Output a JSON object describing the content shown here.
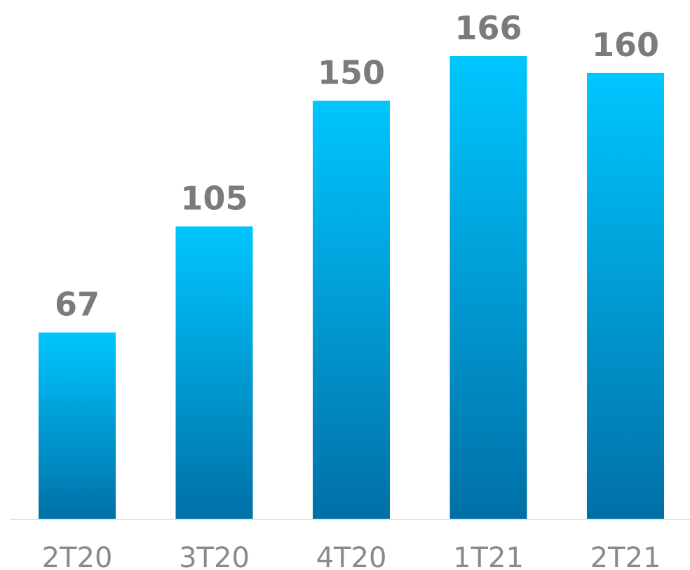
{
  "chart_data": {
    "type": "bar",
    "categories": [
      "2T20",
      "3T20",
      "4T20",
      "1T21",
      "2T21"
    ],
    "values": [
      67,
      105,
      150,
      166,
      160
    ],
    "data_labels": [
      "67",
      "105",
      "150",
      "166",
      "160"
    ],
    "title": "",
    "xlabel": "",
    "ylabel": "",
    "ylim": [
      0,
      166
    ],
    "grid": false,
    "legend": "none",
    "colors": {
      "bar_top": "#00c6ff",
      "bar_bottom": "#0070a6",
      "value_label": "#7b7b7b",
      "category_label": "#8a8a8a",
      "axis_line": "#e3e3e3"
    }
  }
}
